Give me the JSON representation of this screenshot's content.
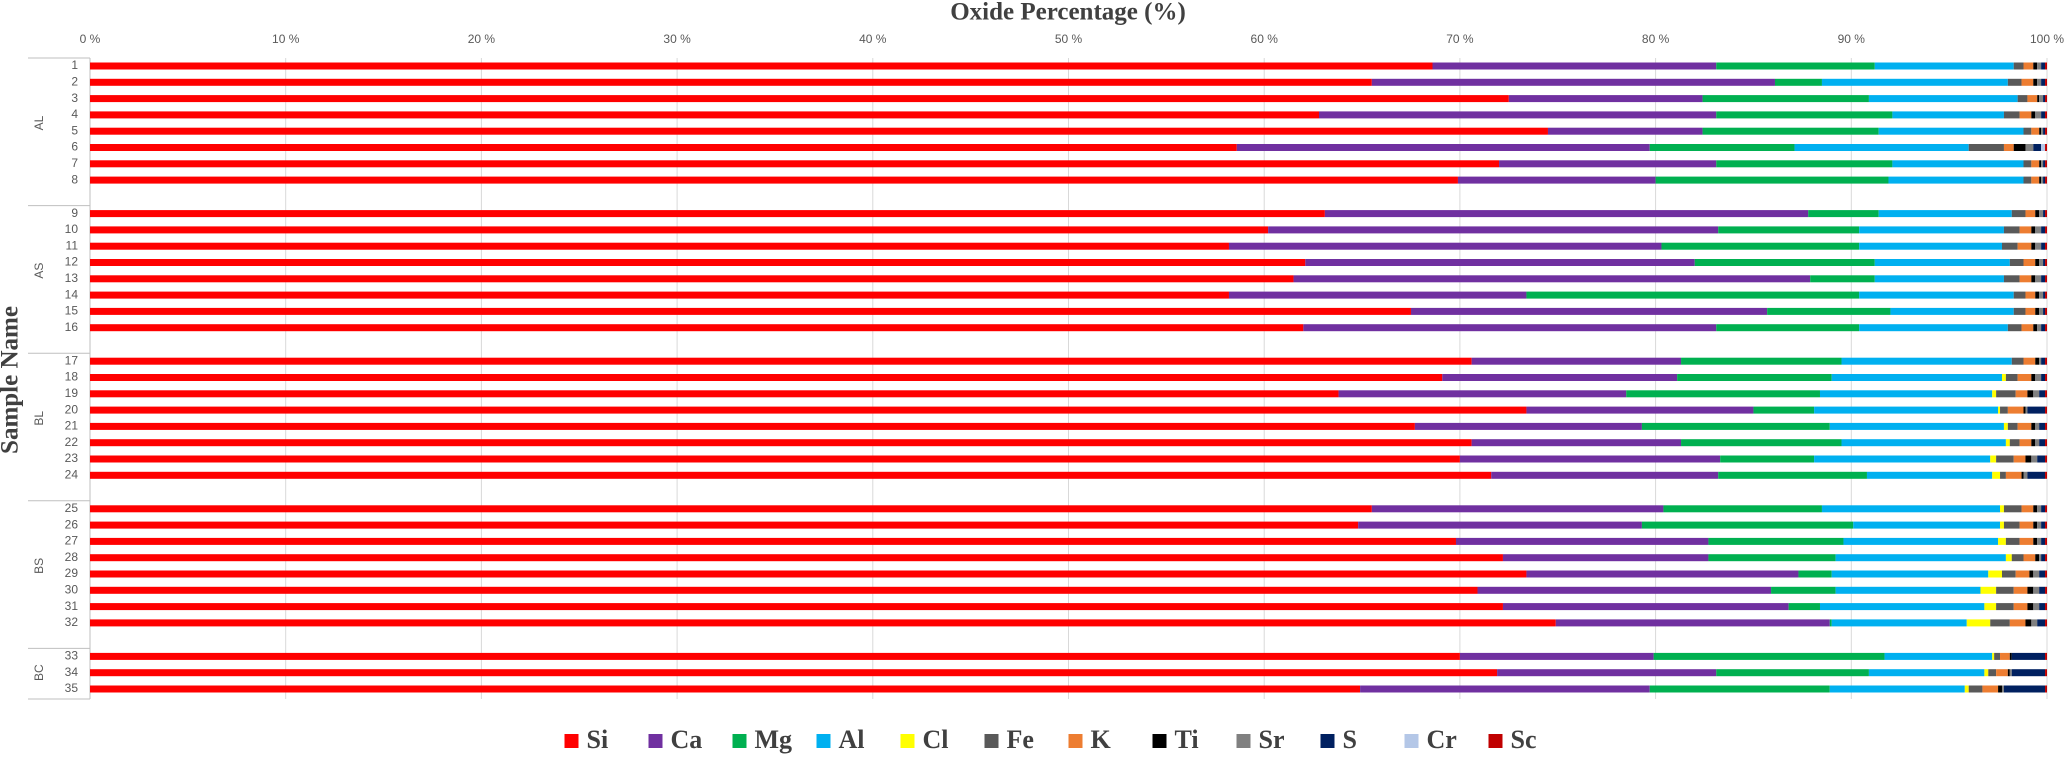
{
  "chart_data": {
    "type": "stacked-bar-horizontal",
    "title": "Oxide Percentage (%)",
    "y_label": "Sample Name",
    "groups": [
      {
        "name": "AL",
        "categories": [
          "1",
          "2",
          "3",
          "4",
          "5",
          "6",
          "7",
          "8"
        ]
      },
      {
        "name": "AS",
        "categories": [
          "9",
          "10",
          "11",
          "12",
          "13",
          "14",
          "15",
          "16"
        ]
      },
      {
        "name": "BL",
        "categories": [
          "17",
          "18",
          "19",
          "20",
          "21",
          "22",
          "23",
          "24"
        ]
      },
      {
        "name": "BS",
        "categories": [
          "25",
          "26",
          "27",
          "28",
          "29",
          "30",
          "31",
          "32"
        ]
      },
      {
        "name": "BC",
        "categories": [
          "33",
          "34",
          "35"
        ]
      }
    ],
    "xlim": [
      0,
      100
    ],
    "xticks": [
      {
        "value": 0,
        "label": "0 %"
      },
      {
        "value": 10,
        "label": "10 %"
      },
      {
        "value": 20,
        "label": "20 %"
      },
      {
        "value": 30,
        "label": "30 %"
      },
      {
        "value": 40,
        "label": "40 %"
      },
      {
        "value": 50,
        "label": "50 %"
      },
      {
        "value": 60,
        "label": "60 %"
      },
      {
        "value": 70,
        "label": "70 %"
      },
      {
        "value": 80,
        "label": "80 %"
      },
      {
        "value": 90,
        "label": "90 %"
      },
      {
        "value": 100,
        "label": "100 %"
      }
    ],
    "grid": true,
    "legend": "bottom",
    "series": [
      {
        "name": "Si",
        "color": "#ff0000",
        "values": [
          68.6,
          65.5,
          72.5,
          62.8,
          74.5,
          58.6,
          72.0,
          69.9,
          63.1,
          60.2,
          58.2,
          62.1,
          61.5,
          58.2,
          67.5,
          62.0,
          70.6,
          69.1,
          63.8,
          73.4,
          67.7,
          70.6,
          70.0,
          71.6,
          65.5,
          64.8,
          69.8,
          72.2,
          73.4,
          70.9,
          72.2,
          74.9,
          70.0,
          71.9,
          64.9
        ]
      },
      {
        "name": "Ca",
        "color": "#7030a0",
        "values": [
          14.5,
          20.6,
          9.9,
          20.3,
          7.9,
          21.1,
          11.1,
          10.1,
          24.7,
          23.0,
          22.1,
          19.9,
          26.4,
          15.2,
          18.2,
          21.1,
          10.7,
          12.0,
          14.7,
          11.6,
          11.6,
          10.7,
          13.3,
          11.6,
          14.9,
          14.5,
          12.9,
          10.5,
          13.9,
          15.0,
          14.6,
          14.0,
          9.9,
          11.2,
          14.8
        ]
      },
      {
        "name": "Mg",
        "color": "#00b050",
        "values": [
          8.1,
          2.4,
          8.5,
          9.0,
          9.0,
          7.4,
          9.0,
          11.9,
          3.6,
          7.2,
          10.1,
          9.2,
          3.3,
          17.0,
          6.3,
          7.3,
          8.2,
          7.9,
          9.9,
          3.1,
          9.6,
          8.2,
          4.8,
          7.6,
          8.1,
          10.8,
          6.9,
          6.5,
          1.7,
          3.3,
          1.6,
          0.1,
          11.8,
          7.8,
          9.2
        ]
      },
      {
        "name": "Al",
        "color": "#00b0f0",
        "values": [
          7.1,
          9.5,
          7.6,
          5.7,
          7.4,
          8.9,
          6.7,
          6.9,
          6.8,
          7.4,
          7.3,
          6.9,
          6.6,
          7.9,
          6.3,
          7.6,
          8.7,
          8.7,
          8.8,
          9.4,
          8.9,
          8.4,
          9.0,
          6.4,
          9.1,
          7.5,
          7.9,
          8.7,
          8.0,
          7.4,
          8.4,
          6.9,
          5.5,
          5.9,
          6.9
        ]
      },
      {
        "name": "Cl",
        "color": "#ffff00",
        "values": [
          0,
          0,
          0,
          0,
          0,
          0,
          0,
          0,
          0,
          0,
          0,
          0,
          0,
          0,
          0,
          0,
          0,
          0.2,
          0.2,
          0.1,
          0.2,
          0.2,
          0.3,
          0.4,
          0.2,
          0.2,
          0.4,
          0.3,
          0.7,
          0.8,
          0.6,
          1.2,
          0.1,
          0.2,
          0.2
        ]
      },
      {
        "name": "Fe",
        "color": "#595959",
        "values": [
          0.5,
          0.7,
          0.5,
          0.8,
          0.4,
          1.8,
          0.4,
          0.4,
          0.7,
          0.8,
          0.8,
          0.7,
          0.8,
          0.6,
          0.6,
          0.7,
          0.6,
          0.6,
          1.0,
          0.4,
          0.5,
          0.5,
          0.9,
          0.3,
          0.9,
          0.8,
          0.7,
          0.6,
          0.7,
          0.9,
          0.9,
          1.0,
          0.3,
          0.4,
          0.7
        ]
      },
      {
        "name": "K",
        "color": "#ed7d31",
        "values": [
          0.5,
          0.6,
          0.5,
          0.6,
          0.4,
          0.5,
          0.4,
          0.4,
          0.5,
          0.6,
          0.7,
          0.6,
          0.6,
          0.5,
          0.5,
          0.6,
          0.6,
          0.7,
          0.6,
          0.8,
          0.7,
          0.6,
          0.6,
          0.8,
          0.6,
          0.7,
          0.7,
          0.6,
          0.7,
          0.7,
          0.7,
          0.8,
          0.5,
          0.6,
          0.8
        ]
      },
      {
        "name": "Ti",
        "color": "#000000",
        "values": [
          0.2,
          0.2,
          0.1,
          0.2,
          0.1,
          0.6,
          0.1,
          0.1,
          0.2,
          0.2,
          0.2,
          0.2,
          0.2,
          0.2,
          0.2,
          0.2,
          0.2,
          0.2,
          0.3,
          0.1,
          0.2,
          0.2,
          0.3,
          0.1,
          0.2,
          0.2,
          0.2,
          0.2,
          0.2,
          0.3,
          0.3,
          0.3,
          0.1,
          0.1,
          0.2
        ]
      },
      {
        "name": "Sr",
        "color": "#808080",
        "values": [
          0.2,
          0.2,
          0.2,
          0.3,
          0.1,
          0.4,
          0.1,
          0.1,
          0.2,
          0.3,
          0.3,
          0.2,
          0.3,
          0.2,
          0.2,
          0.2,
          0.1,
          0.3,
          0.3,
          0.1,
          0.2,
          0.2,
          0.3,
          0.2,
          0.2,
          0.2,
          0.2,
          0.1,
          0.3,
          0.3,
          0.3,
          0.3,
          0,
          0.1,
          0.1
        ]
      },
      {
        "name": "S",
        "color": "#002060",
        "values": [
          0.2,
          0.2,
          0.1,
          0.2,
          0.1,
          0.4,
          0.1,
          0.1,
          0.1,
          0.2,
          0.2,
          0.1,
          0.2,
          0.1,
          0.1,
          0.2,
          0.2,
          0.2,
          0.3,
          0.9,
          0.3,
          0.3,
          0.4,
          0.9,
          0.2,
          0.2,
          0.2,
          0.2,
          0.3,
          0.3,
          0.3,
          0.4,
          1.7,
          1.7,
          2.1
        ]
      },
      {
        "name": "Cr",
        "color": "#b4c7e7",
        "values": [
          0,
          0,
          0,
          0,
          0,
          0.2,
          0,
          0,
          0,
          0,
          0,
          0,
          0,
          0,
          0,
          0,
          0,
          0,
          0,
          0,
          0,
          0,
          0,
          0,
          0,
          0,
          0,
          0,
          0,
          0,
          0,
          0,
          0,
          0,
          0
        ]
      },
      {
        "name": "Sc",
        "color": "#c00000",
        "values": [
          0.1,
          0.1,
          0.1,
          0.1,
          0.1,
          0.1,
          0.1,
          0.1,
          0.1,
          0.1,
          0.1,
          0.1,
          0.1,
          0.1,
          0.1,
          0.1,
          0.1,
          0.1,
          0.1,
          0.1,
          0.1,
          0.1,
          0.1,
          0.1,
          0.1,
          0.1,
          0.1,
          0.1,
          0.1,
          0.1,
          0.1,
          0.1,
          0.1,
          0.1,
          0.1
        ]
      }
    ]
  }
}
